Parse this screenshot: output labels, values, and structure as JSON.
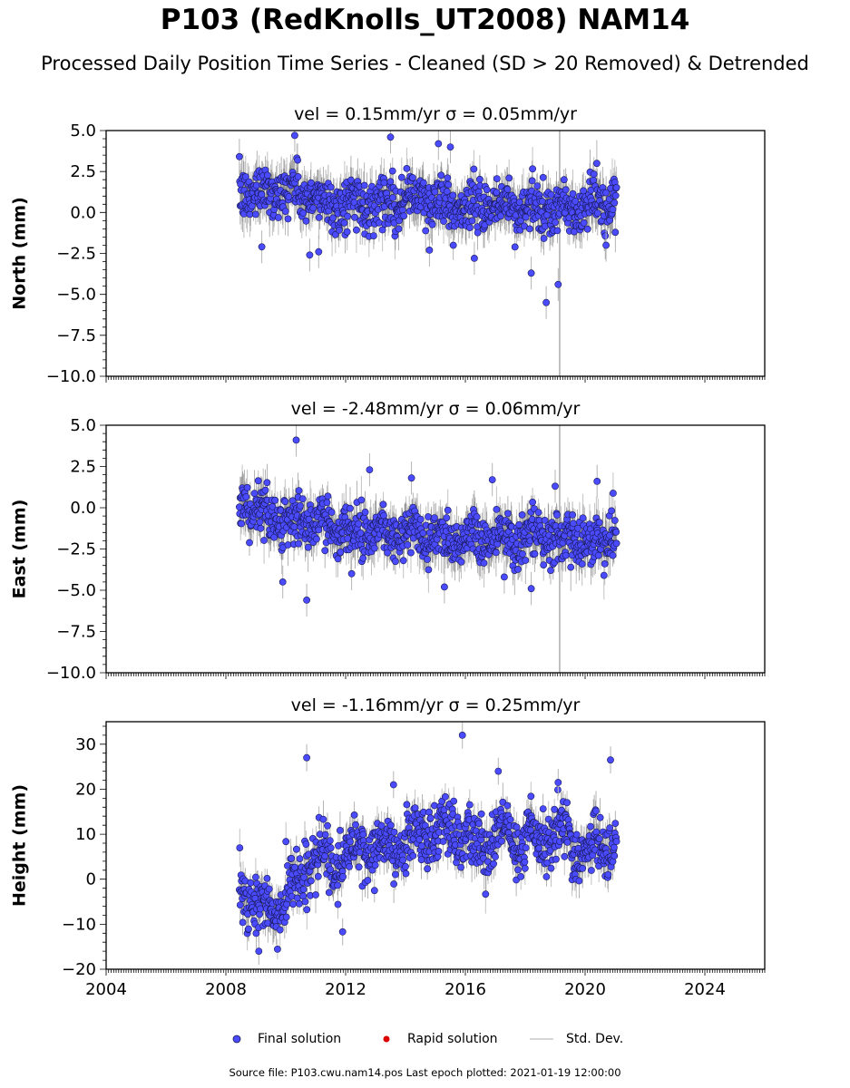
{
  "title": "P103 (RedKnolls_UT2008) NAM14",
  "subtitle": "Processed Daily Position Time Series - Cleaned (SD > 20 Removed) & Detrended",
  "legend": {
    "final": "Final solution",
    "rapid": "Rapid solution",
    "std": "Std. Dev."
  },
  "footer": "Source file: P103.cwu.nam14.pos  Last epoch plotted: 2021-01-19 12:00:00",
  "colors": {
    "final_fill": "#4a4aff",
    "final_edge": "#1a1a55",
    "rapid": "#dd0000",
    "std_dev": "#b4b4b4",
    "std_dev_dense": "#555555"
  },
  "chart_data": [
    {
      "type": "scatter",
      "component": "north",
      "title": "vel = 0.15mm/yr   σ = 0.05mm/yr",
      "ylabel": "North (mm)",
      "xlim": [
        2004,
        2026
      ],
      "ylim": [
        -10,
        5
      ],
      "xticks": [
        2004,
        2008,
        2012,
        2016,
        2020,
        2024
      ],
      "yticks": [
        5.0,
        2.5,
        0.0,
        -2.5,
        -5.0,
        -7.5,
        -10.0
      ],
      "ytick_labels": [
        "5.0",
        "2.5",
        "0.0",
        "−2.5",
        "−5.0",
        "−7.5",
        "−10.0"
      ],
      "series": [
        {
          "name": "Final solution",
          "epoch_range": [
            2008.45,
            2021.05
          ],
          "trend": [
            [
              2008.5,
              1.2
            ],
            [
              2010.0,
              1.4
            ],
            [
              2011.5,
              0.5
            ],
            [
              2013.0,
              0.6
            ],
            [
              2014.5,
              0.9
            ],
            [
              2016.0,
              0.2
            ],
            [
              2017.5,
              0.4
            ],
            [
              2019.0,
              0.0
            ],
            [
              2020.5,
              0.6
            ],
            [
              2021.05,
              0.2
            ]
          ],
          "outliers": [
            [
              2010.3,
              4.7
            ],
            [
              2013.5,
              4.6
            ],
            [
              2015.1,
              4.2
            ],
            [
              2015.5,
              4.0
            ],
            [
              2010.8,
              -2.6
            ],
            [
              2011.1,
              -2.4
            ],
            [
              2018.2,
              -3.7
            ],
            [
              2019.1,
              -4.4
            ],
            [
              2018.7,
              -5.5
            ],
            [
              2009.2,
              -2.1
            ],
            [
              2016.3,
              -2.8
            ],
            [
              2014.8,
              -2.3
            ],
            [
              2020.7,
              -2.0
            ]
          ]
        }
      ]
    },
    {
      "type": "scatter",
      "component": "east",
      "title": "vel = -2.48mm/yr   σ = 0.06mm/yr",
      "ylabel": "East (mm)",
      "xlim": [
        2004,
        2026
      ],
      "ylim": [
        -10,
        5
      ],
      "xticks": [
        2004,
        2008,
        2012,
        2016,
        2020,
        2024
      ],
      "yticks": [
        5.0,
        2.5,
        0.0,
        -2.5,
        -5.0,
        -7.5,
        -10.0
      ],
      "ytick_labels": [
        "5.0",
        "2.5",
        "0.0",
        "−2.5",
        "−5.0",
        "−7.5",
        "−10.0"
      ],
      "series": [
        {
          "name": "Final solution",
          "epoch_range": [
            2008.45,
            2021.05
          ],
          "trend": [
            [
              2008.5,
              0.3
            ],
            [
              2009.5,
              -0.5
            ],
            [
              2011.0,
              -1.0
            ],
            [
              2012.5,
              -1.3
            ],
            [
              2014.0,
              -1.6
            ],
            [
              2015.5,
              -1.8
            ],
            [
              2017.0,
              -1.7
            ],
            [
              2018.5,
              -1.9
            ],
            [
              2020.0,
              -2.0
            ],
            [
              2021.05,
              -1.9
            ]
          ],
          "outliers": [
            [
              2010.35,
              4.1
            ],
            [
              2012.8,
              2.3
            ],
            [
              2009.9,
              -4.5
            ],
            [
              2010.7,
              -5.6
            ],
            [
              2012.2,
              -4.0
            ],
            [
              2015.3,
              -4.8
            ],
            [
              2017.3,
              -4.2
            ],
            [
              2018.2,
              -4.9
            ],
            [
              2019.0,
              1.3
            ],
            [
              2020.4,
              1.6
            ],
            [
              2014.2,
              1.8
            ],
            [
              2016.9,
              1.7
            ]
          ]
        }
      ]
    },
    {
      "type": "scatter",
      "component": "height",
      "title": "vel = -1.16mm/yr   σ = 0.25mm/yr",
      "ylabel": "Height (mm)",
      "xlim": [
        2004,
        2026
      ],
      "ylim": [
        -20,
        35
      ],
      "xticks": [
        2004,
        2008,
        2012,
        2016,
        2020,
        2024
      ],
      "yticks": [
        30,
        20,
        10,
        0,
        -10,
        -20
      ],
      "ytick_labels": [
        "30",
        "20",
        "10",
        "0",
        "−10",
        "−20"
      ],
      "xtick_labels": [
        "2004",
        "2008",
        "2012",
        "2016",
        "2020",
        "2024"
      ],
      "series": [
        {
          "name": "Final solution",
          "epoch_range": [
            2008.45,
            2021.05
          ],
          "trend": [
            [
              2008.5,
              -2.0
            ],
            [
              2009.0,
              -5.0
            ],
            [
              2009.6,
              -8.0
            ],
            [
              2010.2,
              -2.0
            ],
            [
              2010.8,
              4.0
            ],
            [
              2011.6,
              3.0
            ],
            [
              2012.5,
              7.0
            ],
            [
              2013.5,
              6.0
            ],
            [
              2014.5,
              10.0
            ],
            [
              2015.6,
              12.0
            ],
            [
              2016.2,
              6.0
            ],
            [
              2017.0,
              10.0
            ],
            [
              2018.0,
              8.0
            ],
            [
              2019.0,
              10.0
            ],
            [
              2020.0,
              6.0
            ],
            [
              2021.05,
              9.0
            ]
          ],
          "outliers": [
            [
              2010.7,
              27.0
            ],
            [
              2015.9,
              32.0
            ],
            [
              2017.1,
              24.0
            ],
            [
              2020.85,
              26.5
            ],
            [
              2011.9,
              -11.7
            ],
            [
              2009.1,
              -16.0
            ],
            [
              2013.6,
              21.0
            ],
            [
              2019.1,
              21.5
            ]
          ]
        }
      ]
    }
  ]
}
